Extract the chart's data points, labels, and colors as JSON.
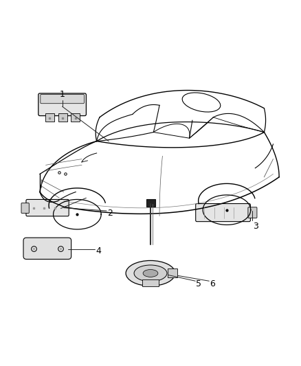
{
  "background_color": "#ffffff",
  "figure_width": 4.38,
  "figure_height": 5.33,
  "dpi": 100,
  "line_color": "#000000",
  "text_color": "#000000",
  "number_fontsize": 9
}
